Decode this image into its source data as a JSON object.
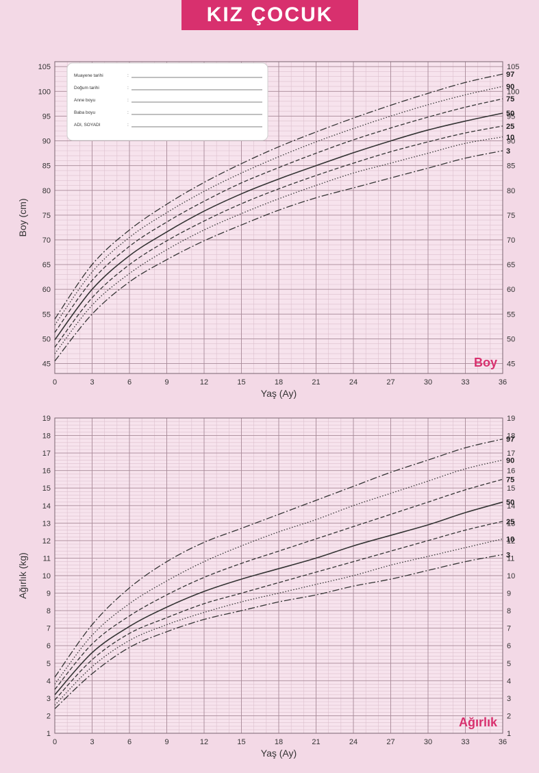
{
  "page": {
    "title": "KIZ ÇOCUK",
    "colors": {
      "background": "#f3d9e6",
      "accent": "#d8306e",
      "grid_major": "#a88a98",
      "grid_minor": "#dcc0cd",
      "curve": "#333333"
    }
  },
  "info_box": {
    "fields": [
      {
        "label": "Muayene tarihi",
        "colon": ":"
      },
      {
        "label": "Doğum tarihi",
        "colon": ":"
      },
      {
        "label": "Anne boyu",
        "colon": ":"
      },
      {
        "label": "Baba boyu",
        "colon": ":"
      },
      {
        "label": "ADI, SOYADI",
        "colon": ":"
      }
    ]
  },
  "chart_data": [
    {
      "type": "line",
      "section_label": "Boy",
      "xlabel": "Yaş (Ay)",
      "ylabel": "Boy (cm)",
      "xlim": [
        0,
        36
      ],
      "ylim": [
        43,
        106
      ],
      "x_ticks": [
        0,
        3,
        6,
        9,
        12,
        15,
        18,
        21,
        24,
        27,
        30,
        33,
        36
      ],
      "y_ticks": [
        45,
        50,
        55,
        60,
        65,
        70,
        75,
        80,
        85,
        90,
        95,
        100,
        105
      ],
      "grid": true,
      "x": [
        0,
        3,
        6,
        9,
        12,
        15,
        18,
        21,
        24,
        27,
        30,
        33,
        36
      ],
      "series": [
        {
          "name": "3",
          "style": "dashdot",
          "values": [
            45.5,
            55.0,
            61.5,
            66.0,
            69.8,
            73.0,
            76.0,
            78.5,
            80.5,
            82.5,
            84.5,
            86.5,
            88.0
          ]
        },
        {
          "name": "10",
          "style": "dotted",
          "values": [
            47.0,
            56.8,
            63.2,
            68.0,
            72.0,
            75.3,
            78.3,
            81.0,
            83.5,
            85.5,
            87.5,
            89.5,
            90.8
          ]
        },
        {
          "name": "25",
          "style": "dashed",
          "values": [
            48.3,
            58.3,
            65.0,
            69.8,
            73.8,
            77.3,
            80.3,
            83.0,
            85.5,
            87.8,
            89.8,
            91.6,
            93.0
          ]
        },
        {
          "name": "50",
          "style": "solid",
          "values": [
            49.8,
            60.0,
            66.8,
            71.6,
            75.8,
            79.3,
            82.3,
            85.0,
            87.6,
            90.0,
            92.2,
            94.0,
            95.6
          ]
        },
        {
          "name": "75",
          "style": "dashed",
          "values": [
            51.3,
            61.8,
            68.7,
            73.6,
            77.8,
            81.5,
            84.6,
            87.5,
            90.2,
            92.6,
            94.8,
            96.8,
            98.5
          ]
        },
        {
          "name": "90",
          "style": "dotted",
          "values": [
            52.8,
            63.5,
            70.5,
            75.5,
            79.8,
            83.5,
            86.8,
            89.8,
            92.5,
            95.0,
            97.3,
            99.3,
            101.0
          ]
        },
        {
          "name": "97",
          "style": "dashdot",
          "values": [
            54.0,
            65.0,
            72.0,
            77.2,
            81.6,
            85.4,
            88.8,
            91.8,
            94.6,
            97.2,
            99.6,
            101.8,
            103.5
          ]
        }
      ]
    },
    {
      "type": "line",
      "section_label": "Ağırlık",
      "xlabel": "Yaş (Ay)",
      "ylabel": "Ağırlık (kg)",
      "xlim": [
        0,
        36
      ],
      "ylim": [
        1,
        19
      ],
      "x_ticks": [
        0,
        3,
        6,
        9,
        12,
        15,
        18,
        21,
        24,
        27,
        30,
        33,
        36
      ],
      "y_ticks": [
        1,
        2,
        3,
        4,
        5,
        6,
        7,
        8,
        9,
        10,
        11,
        12,
        13,
        14,
        15,
        16,
        17,
        18,
        19
      ],
      "grid": true,
      "x": [
        0,
        3,
        6,
        9,
        12,
        15,
        18,
        21,
        24,
        27,
        30,
        33,
        36
      ],
      "series": [
        {
          "name": "3",
          "style": "dashdot",
          "values": [
            2.4,
            4.4,
            5.9,
            6.8,
            7.5,
            8.0,
            8.5,
            8.9,
            9.4,
            9.8,
            10.3,
            10.8,
            11.2
          ]
        },
        {
          "name": "10",
          "style": "dotted",
          "values": [
            2.6,
            4.8,
            6.3,
            7.2,
            7.9,
            8.5,
            9.0,
            9.5,
            10.0,
            10.6,
            11.1,
            11.6,
            12.1
          ]
        },
        {
          "name": "25",
          "style": "dashed",
          "values": [
            2.9,
            5.2,
            6.7,
            7.6,
            8.4,
            9.0,
            9.6,
            10.2,
            10.8,
            11.4,
            12.0,
            12.6,
            13.1
          ]
        },
        {
          "name": "50",
          "style": "solid",
          "values": [
            3.2,
            5.6,
            7.1,
            8.2,
            9.1,
            9.8,
            10.4,
            11.0,
            11.7,
            12.3,
            12.9,
            13.6,
            14.2
          ]
        },
        {
          "name": "75",
          "style": "dashed",
          "values": [
            3.5,
            6.1,
            7.7,
            8.9,
            9.9,
            10.7,
            11.4,
            12.1,
            12.8,
            13.5,
            14.2,
            14.9,
            15.5
          ]
        },
        {
          "name": "90",
          "style": "dotted",
          "values": [
            3.8,
            6.6,
            8.4,
            9.7,
            10.8,
            11.7,
            12.5,
            13.2,
            14.0,
            14.7,
            15.4,
            16.1,
            16.6
          ]
        },
        {
          "name": "97",
          "style": "dashdot",
          "values": [
            4.2,
            7.2,
            9.3,
            10.8,
            11.9,
            12.7,
            13.5,
            14.3,
            15.1,
            15.9,
            16.6,
            17.3,
            17.8
          ]
        }
      ]
    }
  ]
}
